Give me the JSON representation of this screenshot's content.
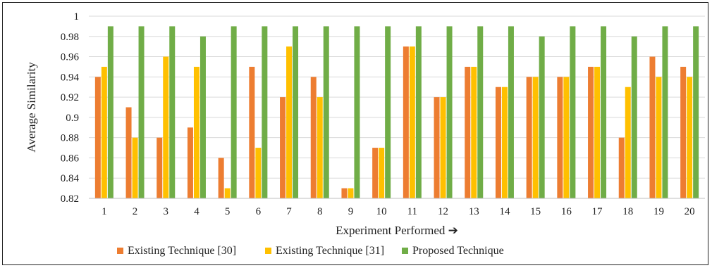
{
  "chart_data": {
    "type": "bar",
    "title": "",
    "xlabel": "Experiment Performed ➔",
    "ylabel": "Average Similarity",
    "ylim": [
      0.82,
      1.0
    ],
    "yticks": [
      0.82,
      0.84,
      0.86,
      0.88,
      0.9,
      0.92,
      0.94,
      0.96,
      0.98,
      1
    ],
    "ytick_labels": [
      "0.82",
      "0.84",
      "0.86",
      "0.88",
      "0.9",
      "0.92",
      "0.94",
      "0.96",
      "0.98",
      "1"
    ],
    "grid": "horizontal",
    "legend_position": "bottom",
    "categories": [
      "1",
      "2",
      "3",
      "4",
      "5",
      "6",
      "7",
      "8",
      "9",
      "10",
      "11",
      "12",
      "13",
      "14",
      "15",
      "16",
      "17",
      "18",
      "19",
      "20"
    ],
    "series": [
      {
        "name": "Existing Technique [30]",
        "color": "#ED7D31",
        "values": [
          0.94,
          0.91,
          0.88,
          0.89,
          0.86,
          0.95,
          0.92,
          0.94,
          0.83,
          0.87,
          0.97,
          0.92,
          0.95,
          0.93,
          0.94,
          0.94,
          0.95,
          0.88,
          0.96,
          0.95
        ]
      },
      {
        "name": "Existing Technique [31]",
        "color": "#FFC000",
        "values": [
          0.95,
          0.88,
          0.96,
          0.95,
          0.83,
          0.87,
          0.97,
          0.92,
          0.83,
          0.87,
          0.97,
          0.92,
          0.95,
          0.93,
          0.94,
          0.94,
          0.95,
          0.93,
          0.94,
          0.94
        ]
      },
      {
        "name": "Proposed Technique",
        "color": "#70AD47",
        "values": [
          0.99,
          0.99,
          0.99,
          0.98,
          0.99,
          0.99,
          0.99,
          0.99,
          0.99,
          0.99,
          0.99,
          0.99,
          0.99,
          0.99,
          0.98,
          0.99,
          0.99,
          0.98,
          0.99,
          0.99
        ]
      }
    ]
  }
}
